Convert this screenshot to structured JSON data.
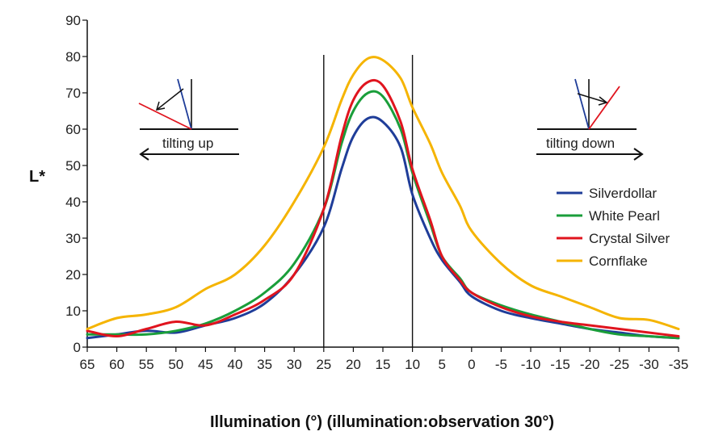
{
  "chart_data": {
    "type": "line",
    "title": "",
    "xlabel": "Illumination (°) (illumination:observation 30°)",
    "ylabel": "L*",
    "xlim": [
      65,
      -35
    ],
    "ylim": [
      0,
      90
    ],
    "x_ticks": [
      65,
      60,
      55,
      50,
      45,
      40,
      35,
      30,
      25,
      20,
      15,
      10,
      5,
      0,
      -5,
      -10,
      -15,
      -20,
      -25,
      -30,
      -35
    ],
    "x_tick_labels": [
      "65",
      "60",
      "55",
      "50",
      "45",
      "40",
      "35",
      "30",
      "25",
      "20",
      "15",
      "10",
      "5",
      "0",
      "-5",
      "-10",
      "-15",
      "-20",
      "-25",
      "-30",
      "-35"
    ],
    "y_ticks": [
      0,
      10,
      20,
      30,
      40,
      50,
      60,
      70,
      80,
      90
    ],
    "y_tick_labels": [
      "0",
      "10",
      "20",
      "30",
      "40",
      "50",
      "60",
      "70",
      "80",
      "90"
    ],
    "vertical_lines": [
      25,
      10
    ],
    "grid": false,
    "legend_position": "right",
    "series": [
      {
        "name": "Silverdollar",
        "color": "#1f3d99",
        "x": [
          65,
          60,
          55,
          50,
          45,
          40,
          35,
          30,
          25,
          22,
          20,
          17.5,
          15,
          12,
          10,
          7,
          5,
          2,
          0,
          -5,
          -10,
          -15,
          -20,
          -25,
          -30,
          -35
        ],
        "y": [
          2.5,
          3.5,
          4.5,
          4,
          6,
          8,
          12,
          20,
          33,
          49,
          58,
          63,
          62,
          55,
          42,
          30,
          24,
          18,
          14,
          10,
          8,
          6.5,
          5,
          4,
          3,
          2.5
        ]
      },
      {
        "name": "White Pearl",
        "color": "#1a9e3a",
        "x": [
          65,
          60,
          55,
          50,
          45,
          40,
          35,
          30,
          25,
          22,
          20,
          17.5,
          15,
          12,
          10,
          7,
          5,
          2,
          0,
          -5,
          -10,
          -15,
          -20,
          -25,
          -30,
          -35
        ],
        "y": [
          3.5,
          3.5,
          3.5,
          4.5,
          6.5,
          10,
          15,
          23,
          38,
          56,
          65,
          70,
          69,
          60,
          48,
          34,
          25,
          19,
          15,
          11.5,
          9,
          7,
          5,
          3.5,
          3,
          2.5
        ]
      },
      {
        "name": "Crystal Silver",
        "color": "#e0141e",
        "x": [
          65,
          60,
          55,
          50,
          45,
          40,
          35,
          30,
          25,
          22,
          20,
          17.5,
          15,
          12,
          10,
          7,
          5,
          2,
          0,
          -5,
          -10,
          -15,
          -20,
          -25,
          -30,
          -35
        ],
        "y": [
          4.5,
          3,
          5,
          7,
          6,
          9,
          13,
          20,
          38,
          58,
          68,
          73,
          72,
          62,
          49,
          35,
          25,
          18.5,
          15,
          11,
          8.5,
          7,
          6,
          5,
          4,
          3
        ]
      },
      {
        "name": "Cornflake",
        "color": "#f5b400",
        "x": [
          65,
          60,
          55,
          50,
          45,
          40,
          35,
          30,
          25,
          22,
          20,
          17.5,
          15,
          12,
          10,
          7,
          5,
          2,
          0,
          -5,
          -10,
          -15,
          -20,
          -25,
          -30,
          -35
        ],
        "y": [
          5,
          8,
          9,
          11,
          16,
          20,
          28,
          40,
          55,
          68,
          75,
          79.5,
          79,
          74,
          66,
          56,
          48,
          39,
          32,
          23,
          17,
          14,
          11,
          8,
          7.5,
          5
        ]
      }
    ],
    "annotations": [
      {
        "id": "tilting_up",
        "text": "tilting up",
        "side": "left",
        "arrow": "left"
      },
      {
        "id": "tilting_down",
        "text": "tilting down",
        "side": "right",
        "arrow": "right"
      }
    ]
  }
}
